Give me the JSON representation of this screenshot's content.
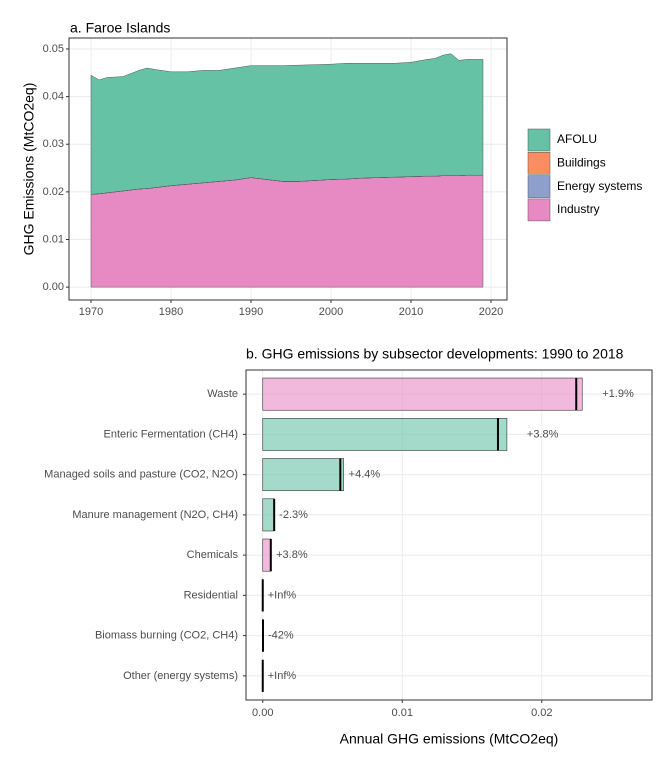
{
  "chart_data": [
    {
      "type": "area",
      "title": "a. Faroe Islands",
      "y_label": "GHG Emissions (MtCO2eq)",
      "x": [
        1970,
        1971,
        1972,
        1974,
        1976,
        1977,
        1978,
        1980,
        1982,
        1984,
        1986,
        1988,
        1990,
        1992,
        1994,
        1996,
        1998,
        2000,
        2002,
        2004,
        2006,
        2008,
        2010,
        2012,
        2013,
        2014,
        2015,
        2016,
        2017,
        2019
      ],
      "series": [
        {
          "name": "AFOLU",
          "color": "#66c2a5",
          "values": [
            0.025,
            0.0239,
            0.0242,
            0.024,
            0.0249,
            0.0253,
            0.0248,
            0.0239,
            0.0236,
            0.0236,
            0.0233,
            0.0235,
            0.0235,
            0.0239,
            0.0243,
            0.0244,
            0.0243,
            0.0242,
            0.0243,
            0.0241,
            0.024,
            0.0239,
            0.024,
            0.0245,
            0.0247,
            0.0253,
            0.0256,
            0.0242,
            0.0243,
            0.0243
          ]
        },
        {
          "name": "Buildings",
          "color": "#fc8d62",
          "values": [
            0,
            0,
            0,
            0,
            0,
            0,
            0,
            0,
            0,
            0,
            0,
            0,
            0,
            0,
            0,
            0,
            0,
            0,
            0,
            0,
            0,
            0,
            0,
            0,
            0,
            0,
            0,
            0,
            0,
            0
          ]
        },
        {
          "name": "Energy systems",
          "color": "#8da0cb",
          "values": [
            0,
            0,
            0,
            0,
            0,
            0,
            0,
            0,
            0,
            0,
            0,
            0,
            0,
            0,
            0,
            0,
            0,
            0,
            0,
            0,
            0,
            0,
            0,
            0,
            0,
            0,
            0,
            0,
            0,
            0
          ]
        },
        {
          "name": "Industry",
          "color": "#e78ac3",
          "values": [
            0.0195,
            0.0196,
            0.0198,
            0.0202,
            0.0206,
            0.0207,
            0.0209,
            0.0213,
            0.0216,
            0.0219,
            0.0222,
            0.0225,
            0.023,
            0.0226,
            0.0222,
            0.0222,
            0.0224,
            0.0226,
            0.0227,
            0.0229,
            0.023,
            0.0231,
            0.0232,
            0.0233,
            0.0233,
            0.0234,
            0.0234,
            0.0234,
            0.0235,
            0.0235
          ]
        }
      ],
      "stack_order": [
        "Industry",
        "Energy systems",
        "Buildings",
        "AFOLU"
      ],
      "xlim": [
        1967.25,
        2022
      ],
      "xticks": [
        1970,
        1980,
        1990,
        2000,
        2010,
        2020
      ],
      "ylim": [
        -0.0027,
        0.0523
      ],
      "yticks": [
        {
          "value": 0,
          "label": "0.00"
        },
        0.01,
        0.02,
        0.03,
        0.04,
        0.05
      ],
      "grid": true,
      "legend": "right"
    },
    {
      "type": "bar",
      "orientation": "horizontal",
      "title": "b. GHG emissions by subsector developments: 1990 to 2018",
      "x_label": "Annual GHG emissions (MtCO2eq)",
      "categories": [
        "Waste",
        "Enteric Fermentation (CH4)",
        "Managed soils and pasture (CO2, N2O)",
        "Manure management (N2O, CH4)",
        "Chemicals",
        "Residential",
        "Biomass burning (CO2, CH4)",
        "Other (energy systems)"
      ],
      "values": [
        0.0229,
        0.0175,
        0.0058,
        0.0008,
        0.0006,
        0,
        1e-05,
        0
      ],
      "reference_values": [
        0.02247,
        0.01686,
        0.00556,
        0.00082,
        0.000578,
        0,
        1.72e-05,
        0
      ],
      "change_labels": [
        "+1.9%",
        "+3.8%",
        "+4.4%",
        "-2.3%",
        "+3.8%",
        "+Inf%",
        "-42%",
        "+Inf%"
      ],
      "colors": [
        "#e78ac3",
        "#66c2a5",
        "#66c2a5",
        "#66c2a5",
        "#e78ac3",
        "#fc8d62",
        "#8da0cb",
        "#8da0cb"
      ],
      "xlim": [
        -0.0012,
        0.0279
      ],
      "xticks": [
        {
          "value": 0,
          "label": "0.00"
        },
        0.01,
        0.02
      ],
      "grid": true
    }
  ]
}
